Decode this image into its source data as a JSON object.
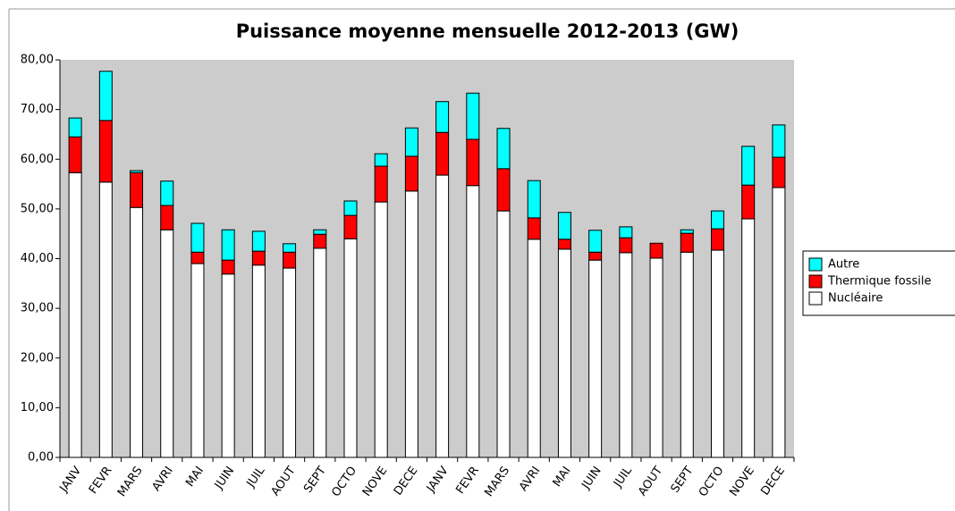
{
  "chart_data": {
    "type": "stacked-bar",
    "title": "Puissance moyenne mensuelle 2012-2013 (GW)",
    "categories": [
      "JANV",
      "FEVR",
      "MARS",
      "AVRI",
      "MAI",
      "JUIN",
      "JUIL",
      "AOUT",
      "SEPT",
      "OCTO",
      "NOVE",
      "DECE",
      "JANV",
      "FEVR",
      "MARS",
      "AVRI",
      "MAI",
      "JUIN",
      "JUIL",
      "AOUT",
      "SEPT",
      "OCTO",
      "NOVE",
      "DECE"
    ],
    "series": [
      {
        "name": "Nucléaire",
        "color": "#ffffff",
        "values": [
          57.3,
          55.4,
          50.3,
          45.8,
          39.0,
          36.9,
          38.7,
          38.1,
          42.1,
          44.0,
          51.4,
          53.6,
          56.8,
          54.7,
          49.6,
          43.9,
          41.9,
          39.7,
          41.2,
          40.1,
          41.3,
          41.7,
          48.0,
          54.3
        ]
      },
      {
        "name": "Thermique fossile",
        "color": "#ff0000",
        "values": [
          7.2,
          12.4,
          7.0,
          4.9,
          2.3,
          2.8,
          2.8,
          3.2,
          2.8,
          4.7,
          7.2,
          7.0,
          8.6,
          9.3,
          8.5,
          4.3,
          2.0,
          1.6,
          3.0,
          3.0,
          3.8,
          4.3,
          6.8,
          6.1
        ]
      },
      {
        "name": "Autre",
        "color": "#00ffff",
        "values": [
          3.8,
          9.9,
          0.4,
          4.9,
          5.8,
          6.1,
          4.0,
          1.7,
          0.9,
          2.9,
          2.5,
          5.7,
          6.2,
          9.3,
          8.1,
          7.5,
          5.4,
          4.4,
          2.2,
          0.0,
          0.7,
          3.6,
          7.8,
          6.5
        ]
      }
    ],
    "ylim": [
      0,
      80
    ],
    "yticks": [
      {
        "value": 0,
        "label": "0,00"
      },
      {
        "value": 10,
        "label": "10,00"
      },
      {
        "value": 20,
        "label": "20,00"
      },
      {
        "value": 30,
        "label": "30,00"
      },
      {
        "value": 40,
        "label": "40,00"
      },
      {
        "value": 50,
        "label": "50,00"
      },
      {
        "value": 60,
        "label": "60,00"
      },
      {
        "value": 70,
        "label": "70,00"
      },
      {
        "value": 80,
        "label": "80,00"
      }
    ],
    "background": "#cccccc",
    "legend": "right"
  }
}
